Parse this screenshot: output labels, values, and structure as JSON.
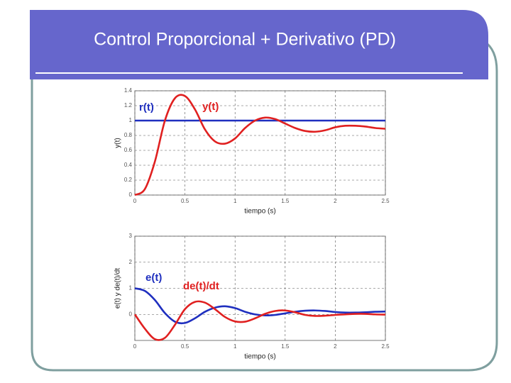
{
  "slide_title": "Control Proporcional + Derivativo (PD)",
  "chart_data": [
    {
      "type": "line",
      "ylabel": "y(t)",
      "xlabel": "tiempo (s)",
      "x": [
        0,
        0.1,
        0.2,
        0.3,
        0.4,
        0.5,
        0.6,
        0.7,
        0.8,
        0.9,
        1.0,
        1.1,
        1.2,
        1.3,
        1.4,
        1.5,
        1.6,
        1.7,
        1.8,
        1.9,
        2.0,
        2.1,
        2.2,
        2.3,
        2.4,
        2.5
      ],
      "series": [
        {
          "name": "r(t)",
          "color": "#1f2fbf",
          "values": [
            1,
            1,
            1,
            1,
            1,
            1,
            1,
            1,
            1,
            1,
            1,
            1,
            1,
            1,
            1,
            1,
            1,
            1,
            1,
            1,
            1,
            1,
            1,
            1,
            1,
            1
          ]
        },
        {
          "name": "y(t)",
          "color": "#e02020",
          "values": [
            0,
            0.08,
            0.45,
            1.0,
            1.3,
            1.33,
            1.15,
            0.88,
            0.72,
            0.69,
            0.76,
            0.9,
            1.0,
            1.04,
            1.02,
            0.96,
            0.9,
            0.86,
            0.85,
            0.87,
            0.91,
            0.93,
            0.93,
            0.92,
            0.9,
            0.89
          ]
        }
      ],
      "xlim": [
        0,
        2.5
      ],
      "xticks": [
        0,
        0.5,
        1,
        1.5,
        2,
        2.5
      ],
      "ylim": [
        0,
        1.4
      ],
      "yticks": [
        0,
        0.2,
        0.4,
        0.6,
        0.8,
        1,
        1.2,
        1.4
      ],
      "grid": true
    },
    {
      "type": "line",
      "ylabel": "e(t) y de(t)/dt",
      "xlabel": "tiempo (s)",
      "x": [
        0,
        0.1,
        0.2,
        0.3,
        0.4,
        0.5,
        0.6,
        0.7,
        0.8,
        0.9,
        1.0,
        1.1,
        1.2,
        1.3,
        1.4,
        1.5,
        1.6,
        1.7,
        1.8,
        1.9,
        2.0,
        2.1,
        2.2,
        2.3,
        2.4,
        2.5
      ],
      "series": [
        {
          "name": "e(t)",
          "color": "#1f2fbf",
          "values": [
            1.0,
            0.9,
            0.55,
            0.05,
            -0.28,
            -0.33,
            -0.15,
            0.1,
            0.26,
            0.31,
            0.24,
            0.1,
            0.0,
            -0.04,
            -0.02,
            0.04,
            0.1,
            0.14,
            0.15,
            0.13,
            0.09,
            0.07,
            0.07,
            0.08,
            0.1,
            0.11
          ]
        },
        {
          "name": "de(t)/dt",
          "color": "#e02020",
          "values": [
            0,
            -0.55,
            -0.95,
            -0.9,
            -0.4,
            0.2,
            0.48,
            0.45,
            0.2,
            -0.1,
            -0.27,
            -0.28,
            -0.15,
            0.02,
            0.13,
            0.15,
            0.08,
            -0.02,
            -0.06,
            -0.05,
            -0.02,
            0.0,
            0.02,
            0.02,
            0.0,
            -0.01
          ]
        }
      ],
      "xlim": [
        0,
        2.5
      ],
      "xticks": [
        0,
        0.5,
        1,
        1.5,
        2,
        2.5
      ],
      "ylim": [
        -1,
        3
      ],
      "yticks": [
        0,
        1,
        2,
        3
      ],
      "grid": true
    }
  ]
}
